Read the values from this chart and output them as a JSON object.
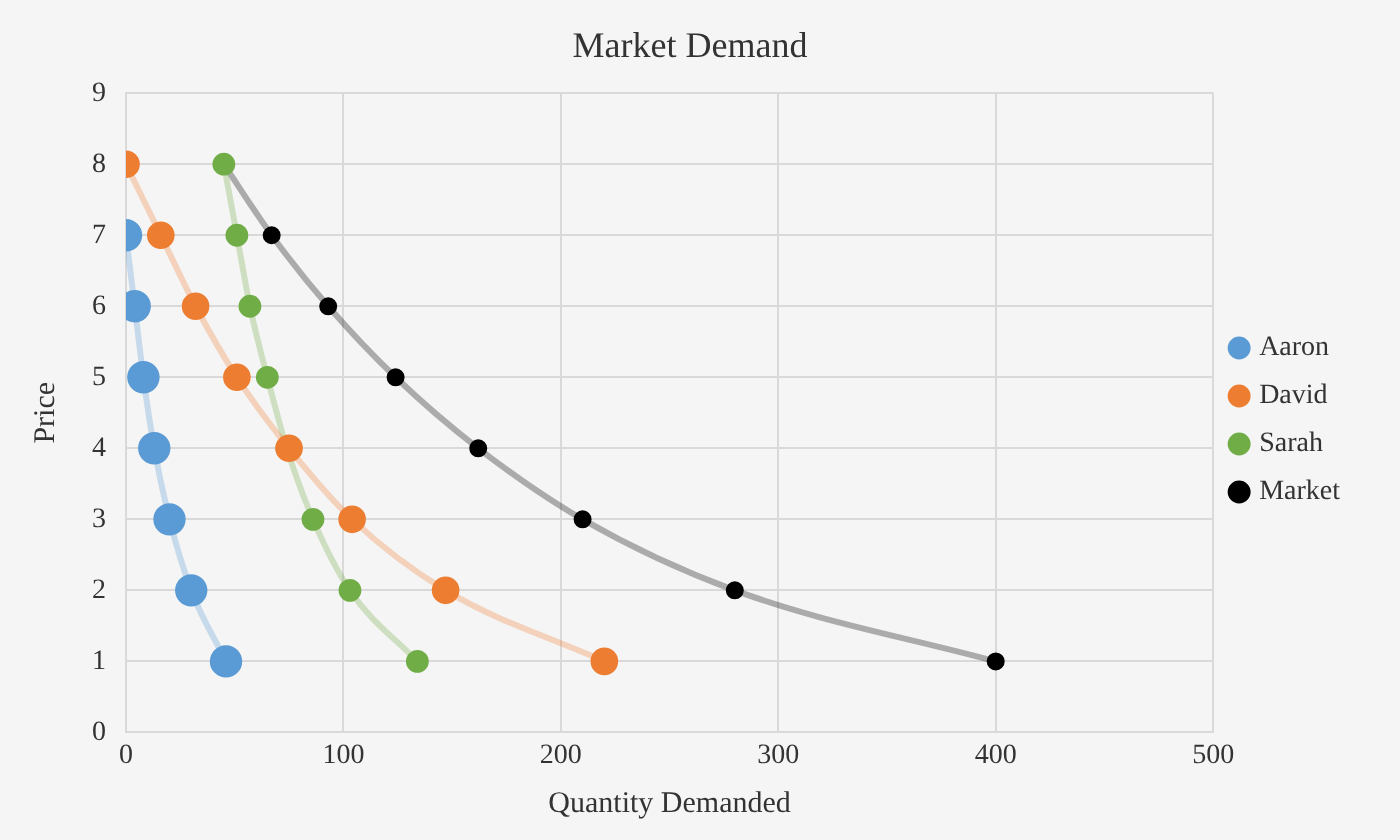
{
  "chart_data": {
    "type": "line",
    "title": "Market Demand",
    "xlabel": "Quantity Demanded",
    "ylabel": "Price",
    "xlim": [
      0,
      500
    ],
    "xticks": [
      0,
      100,
      200,
      300,
      400,
      500
    ],
    "ylim": [
      0,
      9
    ],
    "yticks": [
      0,
      1,
      2,
      3,
      4,
      5,
      6,
      7,
      8,
      9
    ],
    "grid": true,
    "legend": "right",
    "marker": "circle",
    "line_style": "solid",
    "series": [
      {
        "name": "Aaron",
        "color": "#5b9bd5",
        "x": [
          0,
          4,
          8,
          13,
          20,
          30,
          46
        ],
        "values": [
          7,
          6,
          5,
          4,
          3,
          2,
          1
        ]
      },
      {
        "name": "David",
        "color": "#ed7d31",
        "x": [
          0,
          16,
          32,
          51,
          75,
          104,
          147,
          220
        ],
        "values": [
          8,
          7,
          6,
          5,
          4,
          3,
          2,
          1
        ]
      },
      {
        "name": "Sarah",
        "color": "#70ad47",
        "x": [
          45,
          51,
          57,
          65,
          74,
          86,
          103,
          134
        ],
        "values": [
          8,
          7,
          6,
          5,
          4,
          3,
          2,
          1
        ]
      },
      {
        "name": "Market",
        "color": "#000000",
        "x": [
          45,
          67,
          93,
          124,
          162,
          210,
          280,
          400
        ],
        "values": [
          8,
          7,
          6,
          5,
          4,
          3,
          2,
          1
        ]
      }
    ]
  }
}
